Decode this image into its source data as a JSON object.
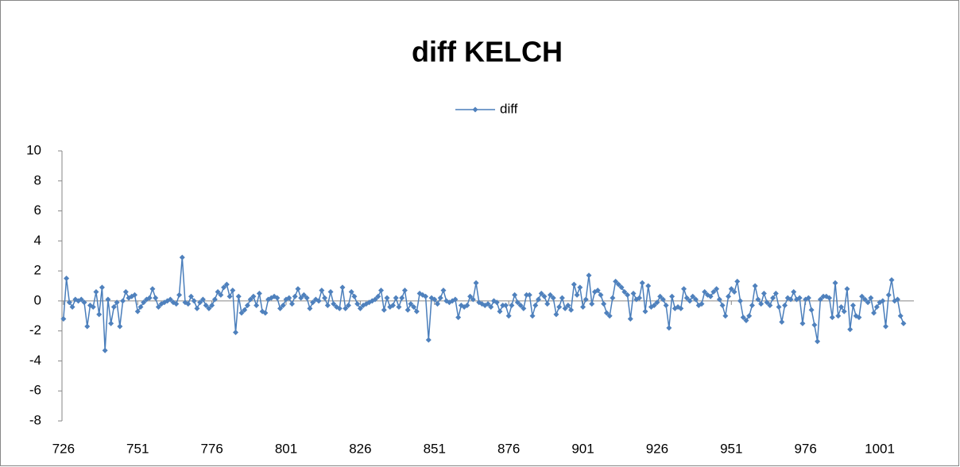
{
  "chart_data": {
    "type": "line",
    "title": "diff KELCH",
    "x": [
      726,
      727,
      728,
      729,
      730,
      731,
      732,
      733,
      734,
      735,
      736,
      737,
      738,
      739,
      740,
      741,
      742,
      743,
      744,
      745,
      746,
      747,
      748,
      749,
      750,
      751,
      752,
      753,
      754,
      755,
      756,
      757,
      758,
      759,
      760,
      761,
      762,
      763,
      764,
      765,
      766,
      767,
      768,
      769,
      770,
      771,
      772,
      773,
      774,
      775,
      776,
      777,
      778,
      779,
      780,
      781,
      782,
      783,
      784,
      785,
      786,
      787,
      788,
      789,
      790,
      791,
      792,
      793,
      794,
      795,
      796,
      797,
      798,
      799,
      800,
      801,
      802,
      803,
      804,
      805,
      806,
      807,
      808,
      809,
      810,
      811,
      812,
      813,
      814,
      815,
      816,
      817,
      818,
      819,
      820,
      821,
      822,
      823,
      824,
      825,
      826,
      827,
      828,
      829,
      830,
      831,
      832,
      833,
      834,
      835,
      836,
      837,
      838,
      839,
      840,
      841,
      842,
      843,
      844,
      845,
      846,
      847,
      848,
      849,
      850,
      851,
      852,
      853,
      854,
      855,
      856,
      857,
      858,
      859,
      860,
      861,
      862,
      863,
      864,
      865,
      866,
      867,
      868,
      869,
      870,
      871,
      872,
      873,
      874,
      875,
      876,
      877,
      878,
      879,
      880,
      881,
      882,
      883,
      884,
      885,
      886,
      887,
      888,
      889,
      890,
      891,
      892,
      893,
      894,
      895,
      896,
      897,
      898,
      899,
      900,
      901,
      902,
      903,
      904,
      905,
      906,
      907,
      908,
      909,
      910,
      911,
      912,
      913,
      914,
      915,
      916,
      917,
      918,
      919,
      920,
      921,
      922,
      923,
      924,
      925,
      926,
      927,
      928,
      929,
      930,
      931,
      932,
      933,
      934,
      935,
      936,
      937,
      938,
      939,
      940,
      941,
      942,
      943,
      944,
      945,
      946,
      947,
      948,
      949,
      950,
      951,
      952,
      953,
      954,
      955,
      956,
      957,
      958,
      959,
      960,
      961,
      962,
      963,
      964,
      965,
      966,
      967,
      968,
      969,
      970,
      971,
      972,
      973,
      974,
      975,
      976,
      977,
      978,
      979,
      980,
      981,
      982,
      983,
      984,
      985,
      986,
      987,
      988,
      989,
      990,
      991,
      992,
      993,
      994,
      995,
      996,
      997,
      998,
      999,
      1000,
      1001,
      1002,
      1003,
      1004,
      1005,
      1006,
      1007,
      1008,
      1009
    ],
    "series": [
      {
        "name": "diff",
        "color": "#4a7ebb",
        "values": [
          -1.2,
          1.5,
          -0.1,
          -0.4,
          0.1,
          0,
          0.1,
          -0.1,
          -1.7,
          -0.3,
          -0.4,
          0.6,
          -0.9,
          0.9,
          -3.3,
          0.1,
          -1.5,
          -0.4,
          -0.1,
          -1.7,
          0,
          0.6,
          0.2,
          0.3,
          0.4,
          -0.7,
          -0.4,
          -0.1,
          0.1,
          0.2,
          0.8,
          0.2,
          -0.4,
          -0.2,
          -0.1,
          0,
          0.1,
          -0.1,
          -0.2,
          0.4,
          2.9,
          -0.1,
          -0.2,
          0.3,
          0,
          -0.5,
          -0.1,
          0.1,
          -0.3,
          -0.5,
          -0.3,
          0.1,
          0.6,
          0.4,
          0.9,
          1.1,
          0.3,
          0.7,
          -2.1,
          0.3,
          -0.8,
          -0.6,
          -0.3,
          0.1,
          0.3,
          -0.3,
          0.5,
          -0.7,
          -0.8,
          0.1,
          0.2,
          0.3,
          0.2,
          -0.5,
          -0.3,
          0.1,
          0.2,
          -0.2,
          0.3,
          0.8,
          0.2,
          0.4,
          0.2,
          -0.5,
          -0.1,
          0.1,
          0,
          0.7,
          0.2,
          -0.3,
          0.6,
          -0.2,
          -0.4,
          -0.5,
          0.9,
          -0.5,
          -0.3,
          0.6,
          0.3,
          -0.2,
          -0.5,
          -0.3,
          -0.2,
          -0.1,
          0,
          0.1,
          0.3,
          0.7,
          -0.6,
          0.2,
          -0.4,
          -0.3,
          0.2,
          -0.4,
          0.2,
          0.7,
          -0.6,
          -0.2,
          -0.4,
          -0.7,
          0.5,
          0.4,
          0.3,
          -2.6,
          0.2,
          0.1,
          -0.2,
          0.2,
          0.7,
          0,
          -0.1,
          0,
          0.1,
          -1.1,
          -0.3,
          -0.4,
          -0.3,
          0.3,
          0.1,
          1.2,
          -0.1,
          -0.2,
          -0.3,
          -0.2,
          -0.4,
          0,
          -0.1,
          -0.7,
          -0.3,
          -0.3,
          -1,
          -0.3,
          0.4,
          -0.1,
          -0.3,
          -0.5,
          0.4,
          0.4,
          -1,
          -0.3,
          0.1,
          0.5,
          0.3,
          -0.2,
          0.4,
          0.2,
          -0.9,
          -0.4,
          0.2,
          -0.5,
          -0.3,
          -0.6,
          1.1,
          0.4,
          0.9,
          -0.4,
          0.1,
          1.7,
          -0.2,
          0.6,
          0.7,
          0.4,
          -0.2,
          -0.8,
          -1,
          0.2,
          1.3,
          1.1,
          0.9,
          0.6,
          0.4,
          -1.2,
          0.5,
          0.1,
          0.2,
          1.2,
          -0.7,
          1,
          -0.4,
          -0.3,
          -0.1,
          0.3,
          0.1,
          -0.3,
          -1.8,
          0.3,
          -0.5,
          -0.4,
          -0.5,
          0.8,
          0.2,
          0,
          0.3,
          0.1,
          -0.3,
          -0.2,
          0.6,
          0.4,
          0.3,
          0.6,
          0.8,
          0.1,
          -0.3,
          -1,
          0.3,
          0.8,
          0.6,
          1.3,
          0,
          -1.1,
          -1.3,
          -1,
          -0.3,
          1,
          0.1,
          -0.2,
          0.5,
          -0.1,
          -0.3,
          0.2,
          0.5,
          -0.4,
          -1.4,
          -0.3,
          0.2,
          0.1,
          0.6,
          0.1,
          0.2,
          -1.5,
          0.1,
          0.2,
          -0.6,
          -1.6,
          -2.7,
          0.1,
          0.3,
          0.3,
          0.2,
          -1.1,
          1.2,
          -1,
          -0.4,
          -0.7,
          0.8,
          -1.9,
          -0.3,
          -1,
          -1.1,
          0.3,
          0.1,
          -0.1,
          0.2,
          -0.8,
          -0.4,
          -0.1,
          0,
          -1.7,
          0.4,
          1.4,
          0,
          0.1,
          -1,
          -1.5
        ]
      }
    ],
    "xlim": [
      725.5,
      1012.5
    ],
    "xticks": [
      726,
      751,
      776,
      801,
      826,
      851,
      876,
      901,
      926,
      951,
      976,
      1001
    ],
    "ylim": [
      -8,
      10
    ],
    "yticks": [
      -8,
      -6,
      -4,
      -2,
      0,
      2,
      4,
      6,
      8,
      10
    ],
    "grid": false,
    "legend": "top"
  }
}
